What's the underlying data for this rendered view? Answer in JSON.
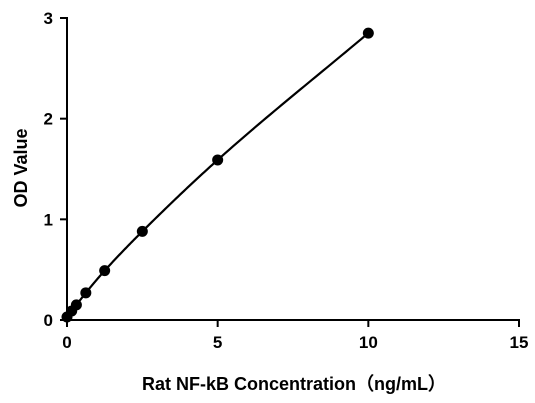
{
  "chart_data": {
    "type": "scatter",
    "title": "",
    "xlabel": "Rat NF-kB Concentration（ng/mL）",
    "ylabel": "OD Value",
    "xlim": [
      0,
      15
    ],
    "ylim": [
      0,
      3
    ],
    "x_ticks": [
      "0",
      "5",
      "10",
      "15"
    ],
    "y_ticks": [
      "0",
      "1",
      "2",
      "3"
    ],
    "grid": false,
    "legend": "none",
    "has_fit_curve": true,
    "series": [
      {
        "x": [
          0,
          0.156,
          0.312,
          0.625,
          1.25,
          2.5,
          5,
          10
        ],
        "y": [
          0.03,
          0.09,
          0.15,
          0.27,
          0.49,
          0.88,
          1.59,
          2.85
        ]
      }
    ]
  }
}
